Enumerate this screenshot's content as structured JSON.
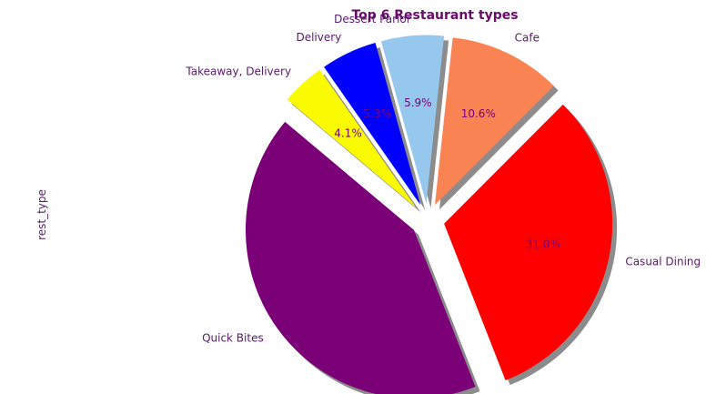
{
  "chart_data": {
    "type": "pie",
    "title": "Top 6 Restaurant types",
    "ylabel": "rest_type",
    "slices": [
      {
        "label": "Quick Bites",
        "value": 41.3,
        "pct_label": "",
        "color": "#7b0077"
      },
      {
        "label": "Casual Dining",
        "value": 31.0,
        "pct_label": "31.0%",
        "color": "#ff0000"
      },
      {
        "label": "Cafe",
        "value": 10.6,
        "pct_label": "10.6%",
        "color": "#f98353"
      },
      {
        "label": "Dessert Parlor",
        "value": 5.9,
        "pct_label": "5.9%",
        "color": "#96c7ed"
      },
      {
        "label": "Delivery",
        "value": 5.3,
        "pct_label": "5.3%",
        "color": "#0000ff"
      },
      {
        "label": "Takeaway, Delivery",
        "value": 4.1,
        "pct_label": "4.1%",
        "color": "#fafa00"
      }
    ],
    "explode": [
      0.1,
      0.1,
      0.1,
      0.1,
      0.1,
      0.1
    ],
    "shadow": true,
    "text_color": "#5a1a6a",
    "pct_color": "#7a007a",
    "title_color": "#6a0a6a"
  }
}
